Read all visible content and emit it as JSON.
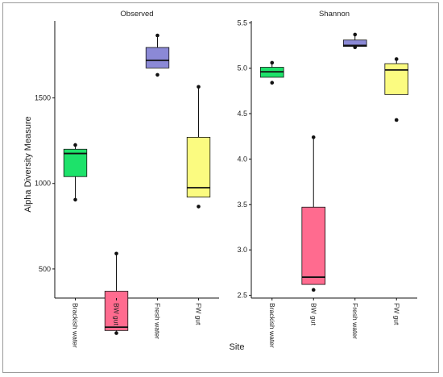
{
  "chart_data": [
    {
      "type": "boxplot",
      "title": "Observed",
      "ylabel": "Alpha Diversity Measure",
      "xlabel": "Site",
      "ylim": [
        330,
        1950
      ],
      "yticks": [
        500,
        1000,
        1500
      ],
      "grid": false,
      "categories": [
        "Brackish water",
        "BW gut",
        "Fresh water",
        "FW gut"
      ],
      "boxes": [
        {
          "name": "Brackish water",
          "color": "#1de26a",
          "whisker_low": 905,
          "q1": 1040,
          "median": 1175,
          "q3": 1200,
          "whisker_high": 1215,
          "outliers": [
            905,
            1225
          ]
        },
        {
          "name": "BW gut",
          "color": "#ff6b8f",
          "whisker_low": 135,
          "q1": 140,
          "median": 160,
          "q3": 370,
          "whisker_high": 590,
          "outliers": [
            125,
            590
          ]
        },
        {
          "name": "Fresh water",
          "color": "#8b89d6",
          "whisker_low": 1675,
          "q1": 1675,
          "median": 1720,
          "q3": 1795,
          "whisker_high": 1855,
          "outliers": [
            1635,
            1865
          ]
        },
        {
          "name": "FW gut",
          "color": "#fbfb80",
          "whisker_low": 920,
          "q1": 920,
          "median": 975,
          "q3": 1270,
          "whisker_high": 1565,
          "outliers": [
            865,
            1565
          ]
        }
      ]
    },
    {
      "type": "boxplot",
      "title": "Shannon",
      "xlabel": "Site",
      "ylim": [
        2.47,
        5.52
      ],
      "yticks": [
        2.5,
        3.0,
        3.5,
        4.0,
        4.5,
        5.0,
        5.5
      ],
      "ytick_labels": [
        "2.5",
        "3.0",
        "3.5",
        "4.0",
        "4.5",
        "5.0",
        "5.5"
      ],
      "grid": false,
      "categories": [
        "Brackish water",
        "BW gut",
        "Fresh water",
        "FW gut"
      ],
      "boxes": [
        {
          "name": "Brackish water",
          "color": "#1de26a",
          "whisker_low": 4.9,
          "q1": 4.9,
          "median": 4.96,
          "q3": 5.01,
          "whisker_high": 5.06,
          "outliers": [
            4.84,
            5.06
          ]
        },
        {
          "name": "BW gut",
          "color": "#ff6b8f",
          "whisker_low": 2.62,
          "q1": 2.62,
          "median": 2.7,
          "q3": 3.47,
          "whisker_high": 4.24,
          "outliers": [
            2.56,
            4.24
          ]
        },
        {
          "name": "Fresh water",
          "color": "#8b89d6",
          "whisker_low": 5.24,
          "q1": 5.24,
          "median": 5.25,
          "q3": 5.31,
          "whisker_high": 5.37,
          "outliers": [
            5.23,
            5.37
          ]
        },
        {
          "name": "FW gut",
          "color": "#fbfb80",
          "whisker_low": 4.71,
          "q1": 4.71,
          "median": 4.98,
          "q3": 5.05,
          "whisker_high": 5.1,
          "outliers": [
            4.43,
            5.1
          ]
        }
      ]
    }
  ]
}
